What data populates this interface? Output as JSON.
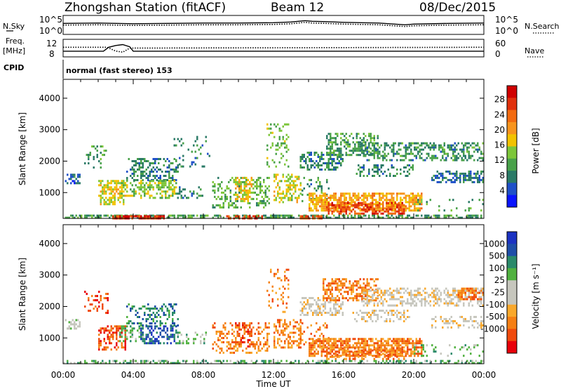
{
  "header": {
    "station": "Zhongshan Station (fitACF)",
    "beam": "Beam 12",
    "date": "08/Dec/2015"
  },
  "panel_labels": {
    "nsky": "N.Sky",
    "freq_line1": "Freq.",
    "freq_line2": "[MHz]",
    "cpid": "CPID",
    "nsearch": "N.Search",
    "nave": "Nave",
    "cpid_text": "normal (fast stereo) 153"
  },
  "colors": {
    "power": [
      "#0a14ff",
      "#1f50c8",
      "#2a7a66",
      "#49a14a",
      "#7dc63a",
      "#f2c200",
      "#f7941d",
      "#f26a10",
      "#e0300c",
      "#d00000"
    ],
    "velocity": [
      "#e8000a",
      "#f04a0c",
      "#f57f14",
      "#f9a82b",
      "#c6c6bd",
      "#c6c6bd",
      "#50b13f",
      "#2a8a6a",
      "#1e4ea8",
      "#1b32c2"
    ]
  },
  "chart_data": [
    {
      "type": "line",
      "name": "noise-panel",
      "left_axis": {
        "label": "N.Sky",
        "ticks": [
          "10^5",
          "10^0"
        ]
      },
      "right_axis": {
        "label": "N.Search",
        "ticks": [
          "10^5",
          "10^0"
        ]
      },
      "x_range_hours": [
        0,
        24
      ],
      "series": [
        {
          "name": "N.Sky",
          "style": "solid",
          "x": [
            0,
            2,
            4,
            6,
            8,
            10,
            12,
            13,
            13.8,
            14.2,
            15,
            16,
            18,
            19.5,
            20,
            22,
            24
          ],
          "y": [
            3.2,
            3.3,
            3.1,
            3.2,
            3.3,
            3.3,
            3.4,
            3.6,
            4.0,
            3.8,
            3.7,
            3.5,
            3.3,
            2.8,
            3.0,
            3.2,
            3.3
          ]
        },
        {
          "name": "N.Search",
          "style": "dotted",
          "x": [
            0,
            2,
            4,
            6,
            8,
            10,
            12,
            13,
            13.8,
            14.2,
            15,
            16,
            18,
            19.5,
            20,
            22,
            24
          ],
          "y": [
            2.7,
            2.8,
            2.6,
            2.7,
            2.8,
            2.8,
            2.9,
            3.1,
            3.5,
            3.3,
            3.2,
            3.0,
            2.8,
            2.3,
            2.5,
            2.7,
            2.8
          ]
        }
      ]
    },
    {
      "type": "line",
      "name": "freq-nave-panel",
      "left_axis": {
        "label": "Freq. [MHz]",
        "ticks": [
          "12",
          "8"
        ]
      },
      "right_axis": {
        "label": "Nave",
        "ticks": [
          "60",
          "0"
        ]
      },
      "x_range_hours": [
        0,
        24
      ],
      "series": [
        {
          "name": "Freq.",
          "style": "solid",
          "x": [
            0,
            2.3,
            2.6,
            3.0,
            3.4,
            3.8,
            4.0,
            24
          ],
          "y": [
            9.3,
            9.3,
            10.2,
            10.6,
            10.8,
            10.3,
            9.3,
            9.3
          ]
        },
        {
          "name": "Nave",
          "style": "dotted",
          "x": [
            0,
            2.5,
            3.0,
            3.4,
            3.8,
            24
          ],
          "y": [
            33,
            33,
            20,
            16,
            30,
            33
          ]
        }
      ]
    },
    {
      "type": "heatmap",
      "name": "power",
      "ylabel": "Slant Range [km]",
      "xlabel": "Time UT",
      "x_range_hours": [
        0,
        24
      ],
      "ylim": [
        180,
        4600
      ],
      "yticks": [
        1000,
        2000,
        3000,
        4000
      ],
      "xticks": [
        "00:00",
        "04:00",
        "08:00",
        "12:00",
        "16:00",
        "20:00",
        "00:00"
      ],
      "colorbar": {
        "label": "Power [dB]",
        "range": [
          0,
          32
        ],
        "tick_labels": [
          "4",
          "8",
          "12",
          "16",
          "20",
          "24",
          "28"
        ]
      },
      "regions": [
        {
          "t": [
            0,
            24
          ],
          "r": [
            200,
            300
          ],
          "v": 10,
          "d": 0.55
        },
        {
          "t": [
            0.1,
            1.0
          ],
          "r": [
            1300,
            1600
          ],
          "v": 5,
          "d": 0.5
        },
        {
          "t": [
            1.2,
            2.5
          ],
          "r": [
            1800,
            2500
          ],
          "v": 10,
          "d": 0.25
        },
        {
          "t": [
            2.0,
            3.6
          ],
          "r": [
            600,
            1400
          ],
          "v": 17,
          "d": 0.5
        },
        {
          "t": [
            3.2,
            4.6
          ],
          "r": [
            900,
            1400
          ],
          "v": 14,
          "d": 0.45
        },
        {
          "t": [
            3.6,
            6.6
          ],
          "r": [
            1400,
            2100
          ],
          "v": 8,
          "d": 0.4
        },
        {
          "t": [
            4.4,
            6.5
          ],
          "r": [
            800,
            1400
          ],
          "v": 14,
          "d": 0.55
        },
        {
          "t": [
            6.5,
            8.0
          ],
          "r": [
            800,
            1200
          ],
          "v": 8,
          "d": 0.3
        },
        {
          "t": [
            6.3,
            8.4
          ],
          "r": [
            1800,
            2800
          ],
          "v": 8,
          "d": 0.12
        },
        {
          "t": [
            8.5,
            11.8
          ],
          "r": [
            500,
            1500
          ],
          "v": 12,
          "d": 0.35
        },
        {
          "t": [
            9.8,
            10.8
          ],
          "r": [
            700,
            1500
          ],
          "v": 18,
          "d": 0.45
        },
        {
          "t": [
            11.6,
            12.9
          ],
          "r": [
            1800,
            3200
          ],
          "v": 13,
          "d": 0.2
        },
        {
          "t": [
            12.0,
            13.6
          ],
          "r": [
            700,
            1600
          ],
          "v": 16,
          "d": 0.45
        },
        {
          "t": [
            13.6,
            15.2
          ],
          "r": [
            700,
            1500
          ],
          "v": 9,
          "d": 0.25
        },
        {
          "t": [
            14.0,
            20.5
          ],
          "r": [
            400,
            1000
          ],
          "v": 20,
          "d": 0.7
        },
        {
          "t": [
            15.0,
            19.5
          ],
          "r": [
            350,
            700
          ],
          "v": 27,
          "d": 0.55
        },
        {
          "t": [
            13.5,
            16.0
          ],
          "r": [
            1700,
            2300
          ],
          "v": 8,
          "d": 0.45
        },
        {
          "t": [
            15.0,
            18.0
          ],
          "r": [
            2200,
            2900
          ],
          "v": 10,
          "d": 0.5
        },
        {
          "t": [
            17.0,
            24.0
          ],
          "r": [
            2000,
            2600
          ],
          "v": 9,
          "d": 0.45
        },
        {
          "t": [
            16.5,
            20.0
          ],
          "r": [
            1500,
            1900
          ],
          "v": 8,
          "d": 0.35
        },
        {
          "t": [
            21.0,
            24.0
          ],
          "r": [
            1300,
            1700
          ],
          "v": 6,
          "d": 0.45
        },
        {
          "t": [
            20.0,
            24.0
          ],
          "r": [
            400,
            800
          ],
          "v": 10,
          "d": 0.15
        },
        {
          "t": [
            2.8,
            5.8
          ],
          "r": [
            190,
            280
          ],
          "v": 29,
          "d": 0.9
        },
        {
          "t": [
            9.3,
            11.3
          ],
          "r": [
            190,
            280
          ],
          "v": 27,
          "d": 0.7
        },
        {
          "t": [
            13.5,
            14.8
          ],
          "r": [
            190,
            280
          ],
          "v": 26,
          "d": 0.6
        }
      ]
    },
    {
      "type": "heatmap",
      "name": "velocity",
      "ylabel": "Slant Range [km]",
      "xlabel": "Time UT",
      "x_range_hours": [
        0,
        24
      ],
      "ylim": [
        180,
        4600
      ],
      "yticks": [
        1000,
        2000,
        3000,
        4000
      ],
      "xticks": [
        "00:00",
        "04:00",
        "08:00",
        "12:00",
        "16:00",
        "20:00",
        "00:00"
      ],
      "colorbar": {
        "label": "Velocity [m s⁻¹]",
        "tick_labels": [
          "-1000",
          "-500",
          "-100",
          "-25",
          "25",
          "100",
          "500",
          "1000"
        ]
      },
      "regions": [
        {
          "t": [
            0,
            24
          ],
          "r": [
            200,
            300
          ],
          "v": 6,
          "d": 0.45
        },
        {
          "t": [
            0.1,
            1.0
          ],
          "r": [
            1300,
            1600
          ],
          "v": 5,
          "d": 0.55
        },
        {
          "t": [
            1.2,
            2.6
          ],
          "r": [
            1800,
            2500
          ],
          "v": 1,
          "d": 0.25
        },
        {
          "t": [
            2.0,
            3.6
          ],
          "r": [
            600,
            1400
          ],
          "v": 1,
          "d": 0.45
        },
        {
          "t": [
            3.2,
            4.6
          ],
          "r": [
            900,
            1400
          ],
          "v": 6,
          "d": 0.4
        },
        {
          "t": [
            3.6,
            6.6
          ],
          "r": [
            1400,
            2100
          ],
          "v": 7,
          "d": 0.35
        },
        {
          "t": [
            4.4,
            6.5
          ],
          "r": [
            800,
            1400
          ],
          "v": 8,
          "d": 0.5
        },
        {
          "t": [
            6.5,
            8.2
          ],
          "r": [
            800,
            1200
          ],
          "v": 6,
          "d": 0.3
        },
        {
          "t": [
            8.5,
            11.8
          ],
          "r": [
            500,
            1500
          ],
          "v": 2,
          "d": 0.35
        },
        {
          "t": [
            9.8,
            10.8
          ],
          "r": [
            700,
            1500
          ],
          "v": 1,
          "d": 0.35
        },
        {
          "t": [
            11.6,
            12.9
          ],
          "r": [
            1800,
            3200
          ],
          "v": 2,
          "d": 0.2
        },
        {
          "t": [
            12.0,
            13.6
          ],
          "r": [
            700,
            1600
          ],
          "v": 2,
          "d": 0.45
        },
        {
          "t": [
            13.6,
            15.2
          ],
          "r": [
            700,
            1500
          ],
          "v": 2,
          "d": 0.25
        },
        {
          "t": [
            14.0,
            20.5
          ],
          "r": [
            400,
            1000
          ],
          "v": 2,
          "d": 0.7
        },
        {
          "t": [
            15.0,
            19.5
          ],
          "r": [
            350,
            700
          ],
          "v": 2,
          "d": 0.5
        },
        {
          "t": [
            13.5,
            16.0
          ],
          "r": [
            1700,
            2300
          ],
          "v": 4,
          "d": 0.45
        },
        {
          "t": [
            14.8,
            18.0
          ],
          "r": [
            2200,
            2900
          ],
          "v": 2,
          "d": 0.5
        },
        {
          "t": [
            17.0,
            24.0
          ],
          "r": [
            2000,
            2600
          ],
          "v": 4,
          "d": 0.45
        },
        {
          "t": [
            22.5,
            24.0
          ],
          "r": [
            2200,
            2600
          ],
          "v": 2,
          "d": 0.5
        },
        {
          "t": [
            16.5,
            20.0
          ],
          "r": [
            1500,
            1900
          ],
          "v": 4,
          "d": 0.35
        },
        {
          "t": [
            21.0,
            24.0
          ],
          "r": [
            1300,
            1700
          ],
          "v": 4,
          "d": 0.35
        },
        {
          "t": [
            20.0,
            24.0
          ],
          "r": [
            400,
            800
          ],
          "v": 6,
          "d": 0.15
        }
      ]
    }
  ]
}
